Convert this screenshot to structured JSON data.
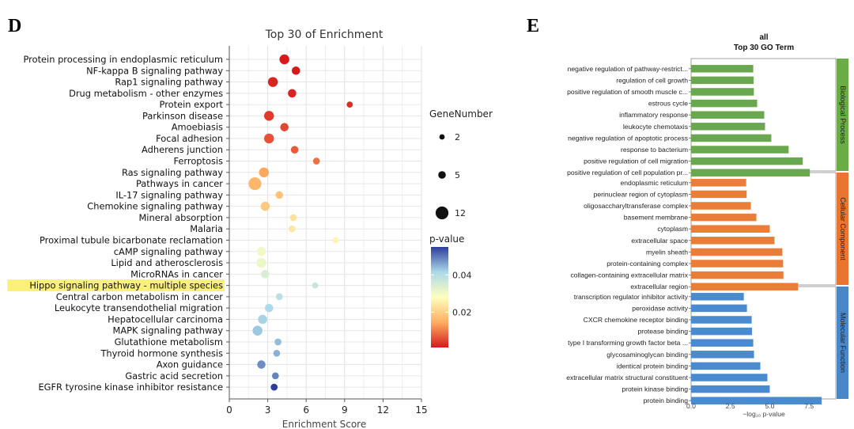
{
  "figure": {
    "panel_d_label": "D",
    "panel_e_label": "E"
  },
  "chart_data": [
    {
      "type": "scatter",
      "title": "Top 30 of  Enrichment",
      "xlabel": "Enrichment Score",
      "ylabel": "",
      "xlim": [
        0,
        15
      ],
      "xticks": [
        0,
        3,
        6,
        9,
        12,
        15
      ],
      "grid": true,
      "highlighted_category": "Hippo signaling pathway - multiple species",
      "highlight_color": "#fbf07a",
      "size_legend": {
        "title": "GeneNumber",
        "values": [
          2,
          5,
          12
        ]
      },
      "color_legend": {
        "title": "p-value",
        "range": [
          0.001,
          0.055
        ],
        "ticks": [
          0.02,
          0.04
        ],
        "tick_labels": [
          "0.02",
          "0.04"
        ]
      },
      "points": [
        {
          "term": "Protein processing in endoplasmic reticulum",
          "x": 4.3,
          "gene_number": 8,
          "p_value": 0.001
        },
        {
          "term": "NF-kappa B signaling pathway",
          "x": 5.2,
          "gene_number": 6,
          "p_value": 0.001
        },
        {
          "term": "Rap1 signaling pathway",
          "x": 3.4,
          "gene_number": 8,
          "p_value": 0.002
        },
        {
          "term": "Drug metabolism - other enzymes",
          "x": 4.9,
          "gene_number": 6,
          "p_value": 0.002
        },
        {
          "term": "Protein export",
          "x": 9.4,
          "gene_number": 3,
          "p_value": 0.003
        },
        {
          "term": "Parkinson disease",
          "x": 3.1,
          "gene_number": 8,
          "p_value": 0.004
        },
        {
          "term": "Amoebiasis",
          "x": 4.3,
          "gene_number": 6,
          "p_value": 0.005
        },
        {
          "term": "Focal adhesion",
          "x": 3.1,
          "gene_number": 8,
          "p_value": 0.006
        },
        {
          "term": "Adherens junction",
          "x": 5.1,
          "gene_number": 5,
          "p_value": 0.007
        },
        {
          "term": "Ferroptosis",
          "x": 6.8,
          "gene_number": 4,
          "p_value": 0.009
        },
        {
          "term": "Ras signaling pathway",
          "x": 2.7,
          "gene_number": 8,
          "p_value": 0.014
        },
        {
          "term": "Pathways in cancer",
          "x": 2.0,
          "gene_number": 12,
          "p_value": 0.016
        },
        {
          "term": "IL-17 signaling pathway",
          "x": 3.9,
          "gene_number": 5,
          "p_value": 0.018
        },
        {
          "term": "Chemokine signaling pathway",
          "x": 2.8,
          "gene_number": 7,
          "p_value": 0.019
        },
        {
          "term": "Mineral absorption",
          "x": 5.0,
          "gene_number": 4,
          "p_value": 0.023
        },
        {
          "term": "Malaria",
          "x": 4.9,
          "gene_number": 4,
          "p_value": 0.024
        },
        {
          "term": "Proximal tubule bicarbonate reclamation",
          "x": 8.3,
          "gene_number": 3,
          "p_value": 0.026
        },
        {
          "term": "cAMP signaling pathway",
          "x": 2.5,
          "gene_number": 7,
          "p_value": 0.03
        },
        {
          "term": "Lipid and atherosclerosis",
          "x": 2.5,
          "gene_number": 8,
          "p_value": 0.031
        },
        {
          "term": "MicroRNAs in cancer",
          "x": 2.8,
          "gene_number": 6,
          "p_value": 0.034
        },
        {
          "term": "Hippo signaling pathway - multiple species",
          "x": 6.7,
          "gene_number": 3,
          "p_value": 0.037
        },
        {
          "term": "Central carbon metabolism in cancer",
          "x": 3.9,
          "gene_number": 4,
          "p_value": 0.039
        },
        {
          "term": "Leukocyte transendothelial migration",
          "x": 3.1,
          "gene_number": 6,
          "p_value": 0.041
        },
        {
          "term": "Hepatocellular carcinoma",
          "x": 2.6,
          "gene_number": 7,
          "p_value": 0.042
        },
        {
          "term": "MAPK signaling pathway",
          "x": 2.2,
          "gene_number": 8,
          "p_value": 0.043
        },
        {
          "term": "Glutathione metabolism",
          "x": 3.8,
          "gene_number": 4,
          "p_value": 0.044
        },
        {
          "term": "Thyroid hormone synthesis",
          "x": 3.7,
          "gene_number": 4,
          "p_value": 0.045
        },
        {
          "term": "Axon guidance",
          "x": 2.5,
          "gene_number": 6,
          "p_value": 0.048
        },
        {
          "term": "Gastric acid secretion",
          "x": 3.6,
          "gene_number": 4,
          "p_value": 0.049
        },
        {
          "term": "EGFR tyrosine kinase inhibitor resistance",
          "x": 3.5,
          "gene_number": 4,
          "p_value": 0.055
        }
      ]
    },
    {
      "type": "bar",
      "orientation": "horizontal",
      "title": "all",
      "subtitle": "Top 30 GO Term",
      "xlabel": "−log₁₀ p-value",
      "xlim": [
        0,
        9.2
      ],
      "xticks": [
        0,
        2.5,
        5,
        7.5
      ],
      "xtick_labels": [
        "0.0",
        "2.5",
        "5.0",
        "7.5"
      ],
      "groups": [
        {
          "name": "Biological Process",
          "color": "#6aa84f",
          "strip_color": "#6aac46",
          "categories": [
            "negative regulation of pathway-restrict...",
            "regulation of cell growth",
            "positive regulation of smooth muscle c...",
            "estrous cycle",
            "inflammatory response",
            "leukocyte chemotaxis",
            "negative regulation of apoptotic process",
            "response to bacterium",
            "positive regulation of cell migration",
            "positive regulation of cell population pr..."
          ],
          "values": [
            3.95,
            3.97,
            3.99,
            4.2,
            4.65,
            4.7,
            5.1,
            6.2,
            7.1,
            7.55
          ]
        },
        {
          "name": "Cellular Component",
          "color": "#ea7d37",
          "strip_color": "#e87631",
          "categories": [
            "endoplasmic reticulum",
            "perinuclear region of cytoplasm",
            "oligosaccharyltransferase complex",
            "basement membrane",
            "cytoplasm",
            "extracellular space",
            "myelin sheath",
            "protein-containing complex",
            "collagen-containing extracellular matrix",
            "extracellular region"
          ],
          "values": [
            3.5,
            3.53,
            3.8,
            4.15,
            5.0,
            5.3,
            5.8,
            5.85,
            5.87,
            6.8
          ]
        },
        {
          "name": "Molecular Function",
          "color": "#4a8bd0",
          "strip_color": "#4a87c9",
          "categories": [
            "transcription regulator inhibitor activity",
            "peroxidase activity",
            "CXCR chemokine receptor binding",
            "protease binding",
            "type I transforming growth factor beta ...",
            "glycosaminoglycan binding",
            "identical protein binding",
            "extracellular matrix structural constituent",
            "protein kinase binding",
            "protein binding"
          ],
          "values": [
            3.35,
            3.55,
            3.85,
            3.87,
            3.95,
            4.0,
            4.4,
            4.85,
            5.0,
            8.3
          ]
        }
      ]
    }
  ]
}
